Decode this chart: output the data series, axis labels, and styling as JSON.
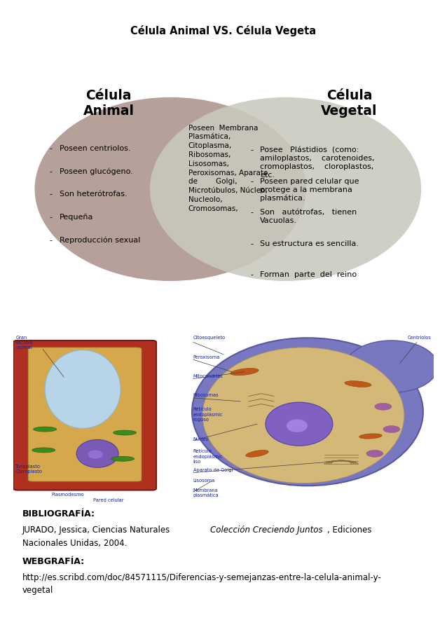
{
  "title": "Célula Animal VS. Célula Vegeta",
  "bg_color": "#ffffff",
  "left_circle_color": "#b5a09a",
  "right_circle_color": "#c9c9be",
  "left_title": "Célula\nAnimal",
  "right_title": "Célula\nVegetal",
  "left_items": [
    "Poseen centriolos.",
    "Poseen glucógeno.",
    "Son heterótrofas.",
    "Pequeña",
    "Reproducción sexual"
  ],
  "center_text": "Poseen  Membrana\nPlasmática,\nCitoplasma,\nRibosomas,\nLisosomas,\nPeroxisomas, Aparato\nde        Golgi,\nMicrotúbulos, Núcleo,\nNucleolo,\nCromosomas,",
  "right_items": [
    "Posee   Plástidios  (como:\namiloplastos,    carotenoides,\ncromoplastos,    cloroplastos,\netc.",
    "Poseen pared celular que\nprotege a la membrana\nplasmática.",
    "Son   autótrofas,   tienen\nVacuolas.",
    "Su estructura es sencilla.",
    "Forman  parte  del  reino"
  ],
  "biblio_header": "BIBLIOGRAFÍA:",
  "biblio_line1_normal": "JURADO, Jessica, Ciencias Naturales ",
  "biblio_line1_italic": "Colección Creciendo Juntos",
  "biblio_line1_end": ", Ediciones",
  "biblio_line2": "Nacionales Unidas, 2004.",
  "web_header": "WEBGRAFÍA:",
  "web_line1": "http://es.scribd.com/doc/84571115/Diferencias-y-semejanzas-entre-la-celula-animal-y-",
  "web_line2": "vegetal"
}
